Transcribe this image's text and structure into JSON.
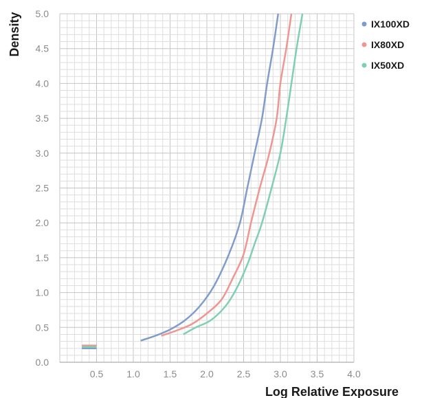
{
  "chart_data": {
    "type": "line",
    "xlabel": "Log Relative Exposure",
    "ylabel": "Density",
    "xlim": [
      0,
      4
    ],
    "ylim": [
      0,
      5
    ],
    "x_ticks": [
      "0.5",
      "1.0",
      "1.5",
      "2.0",
      "2.5",
      "3.0",
      "3.5",
      "4.0"
    ],
    "y_ticks": [
      "0.0",
      "0.5",
      "1.0",
      "1.5",
      "2.0",
      "2.5",
      "3.0",
      "3.5",
      "4.0",
      "4.5",
      "5.0"
    ],
    "grid": true,
    "legend_position": "top-right",
    "base_fog": {
      "x": [
        0.3,
        0.5
      ],
      "values": {
        "IX100XD": 0.2,
        "IX80XD": 0.24,
        "IX50XD": 0.22
      }
    },
    "series": [
      {
        "name": "IX100XD",
        "color": "#7f9ccb",
        "points": [
          [
            1.1,
            0.31
          ],
          [
            1.3,
            0.38
          ],
          [
            1.5,
            0.47
          ],
          [
            1.7,
            0.6
          ],
          [
            1.9,
            0.8
          ],
          [
            2.1,
            1.1
          ],
          [
            2.3,
            1.55
          ],
          [
            2.45,
            2.0
          ],
          [
            2.55,
            2.5
          ],
          [
            2.65,
            3.0
          ],
          [
            2.75,
            3.5
          ],
          [
            2.82,
            4.0
          ],
          [
            2.9,
            4.5
          ],
          [
            2.97,
            5.0
          ]
        ]
      },
      {
        "name": "IX80XD",
        "color": "#ee9691",
        "points": [
          [
            1.38,
            0.38
          ],
          [
            1.6,
            0.46
          ],
          [
            1.8,
            0.55
          ],
          [
            2.0,
            0.7
          ],
          [
            2.2,
            0.9
          ],
          [
            2.35,
            1.2
          ],
          [
            2.5,
            1.55
          ],
          [
            2.6,
            2.0
          ],
          [
            2.72,
            2.5
          ],
          [
            2.85,
            3.0
          ],
          [
            2.95,
            3.5
          ],
          [
            3.0,
            4.0
          ],
          [
            3.08,
            4.5
          ],
          [
            3.15,
            5.0
          ]
        ]
      },
      {
        "name": "IX50XD",
        "color": "#7fcfb0",
        "points": [
          [
            1.68,
            0.4
          ],
          [
            1.85,
            0.5
          ],
          [
            2.05,
            0.6
          ],
          [
            2.25,
            0.8
          ],
          [
            2.4,
            1.05
          ],
          [
            2.55,
            1.4
          ],
          [
            2.65,
            1.7
          ],
          [
            2.75,
            2.0
          ],
          [
            2.88,
            2.5
          ],
          [
            3.0,
            3.0
          ],
          [
            3.08,
            3.5
          ],
          [
            3.15,
            4.0
          ],
          [
            3.22,
            4.5
          ],
          [
            3.3,
            5.0
          ]
        ]
      }
    ]
  }
}
